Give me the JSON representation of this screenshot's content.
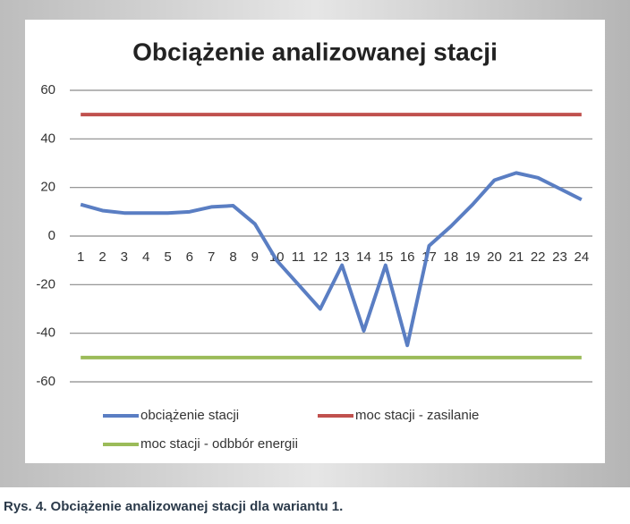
{
  "chart_data": {
    "type": "line",
    "title": "Obciążenie analizowanej stacji",
    "caption": "Rys. 4. Obciążenie analizowanej stacji dla wariantu 1.",
    "categories": [
      "1",
      "2",
      "3",
      "4",
      "5",
      "6",
      "7",
      "8",
      "9",
      "10",
      "11",
      "12",
      "13",
      "14",
      "15",
      "16",
      "17",
      "18",
      "19",
      "20",
      "21",
      "22",
      "23",
      "24"
    ],
    "series": [
      {
        "name": "obciążenie stacji",
        "color": "#5a7ec3",
        "values": [
          13,
          10.5,
          9.5,
          9.5,
          9.5,
          10,
          12,
          12.5,
          5,
          -10,
          -20,
          -30,
          -12,
          -39,
          -12,
          -45,
          -4,
          4,
          13,
          23,
          26,
          24,
          19.5,
          15
        ]
      },
      {
        "name": "moc stacji - zasilanie",
        "color": "#c0504d",
        "values": [
          50,
          50,
          50,
          50,
          50,
          50,
          50,
          50,
          50,
          50,
          50,
          50,
          50,
          50,
          50,
          50,
          50,
          50,
          50,
          50,
          50,
          50,
          50,
          50
        ]
      },
      {
        "name": "moc stacji - odbbór energii",
        "color": "#9bbb59",
        "values": [
          -50,
          -50,
          -50,
          -50,
          -50,
          -50,
          -50,
          -50,
          -50,
          -50,
          -50,
          -50,
          -50,
          -50,
          -50,
          -50,
          -50,
          -50,
          -50,
          -50,
          -50,
          -50,
          -50,
          -50
        ]
      }
    ],
    "ylim": [
      -60,
      60
    ],
    "yticks": [
      -60,
      -40,
      -20,
      0,
      20,
      40,
      60
    ],
    "grid": true
  }
}
